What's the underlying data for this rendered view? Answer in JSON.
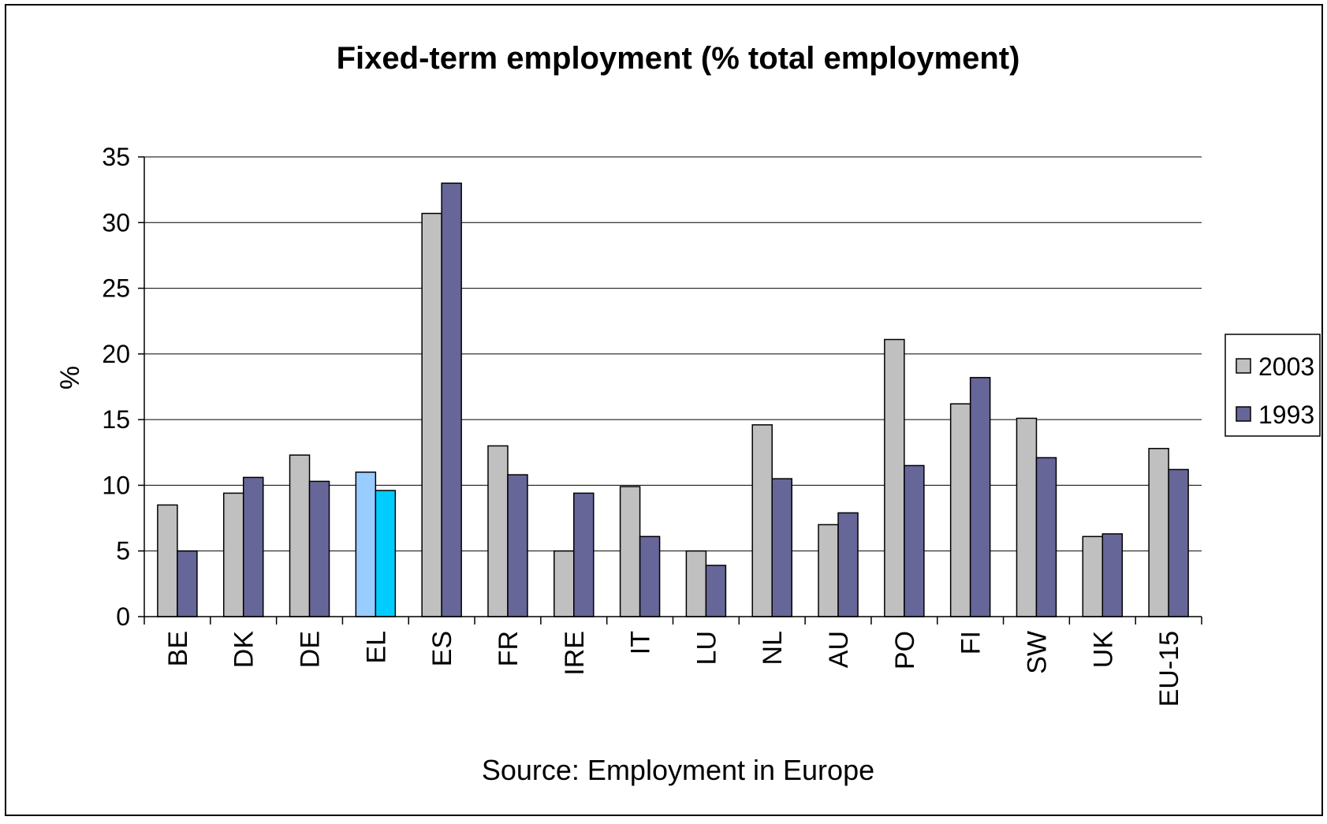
{
  "chart_data": {
    "type": "bar",
    "title": "Fixed-term employment (% total employment)",
    "ylabel": "%",
    "xlabel": "",
    "source": "Source: Employment in Europe",
    "ylim": [
      0,
      35
    ],
    "yticks": [
      0,
      5,
      10,
      15,
      20,
      25,
      30,
      35
    ],
    "grid": true,
    "legend_position": "right",
    "categories": [
      "BE",
      "DK",
      "DE",
      "EL",
      "ES",
      "FR",
      "IRE",
      "IT",
      "LU",
      "NL",
      "AU",
      "PO",
      "FI",
      "SW",
      "UK",
      "EU-15"
    ],
    "series": [
      {
        "name": "2003",
        "color": "#c0c0c0",
        "values": [
          8.5,
          9.4,
          12.3,
          11.0,
          30.7,
          13.0,
          5.0,
          9.9,
          5.0,
          14.6,
          7.0,
          21.1,
          16.2,
          15.1,
          6.1,
          12.8
        ]
      },
      {
        "name": "1993",
        "color": "#666699",
        "values": [
          5.0,
          10.6,
          10.3,
          9.6,
          33.0,
          10.8,
          9.4,
          6.1,
          3.9,
          10.5,
          7.9,
          11.5,
          18.2,
          12.1,
          6.3,
          11.2
        ]
      }
    ],
    "highlight": {
      "category": "EL",
      "colors": [
        "#99ccff",
        "#00ccff"
      ]
    }
  }
}
